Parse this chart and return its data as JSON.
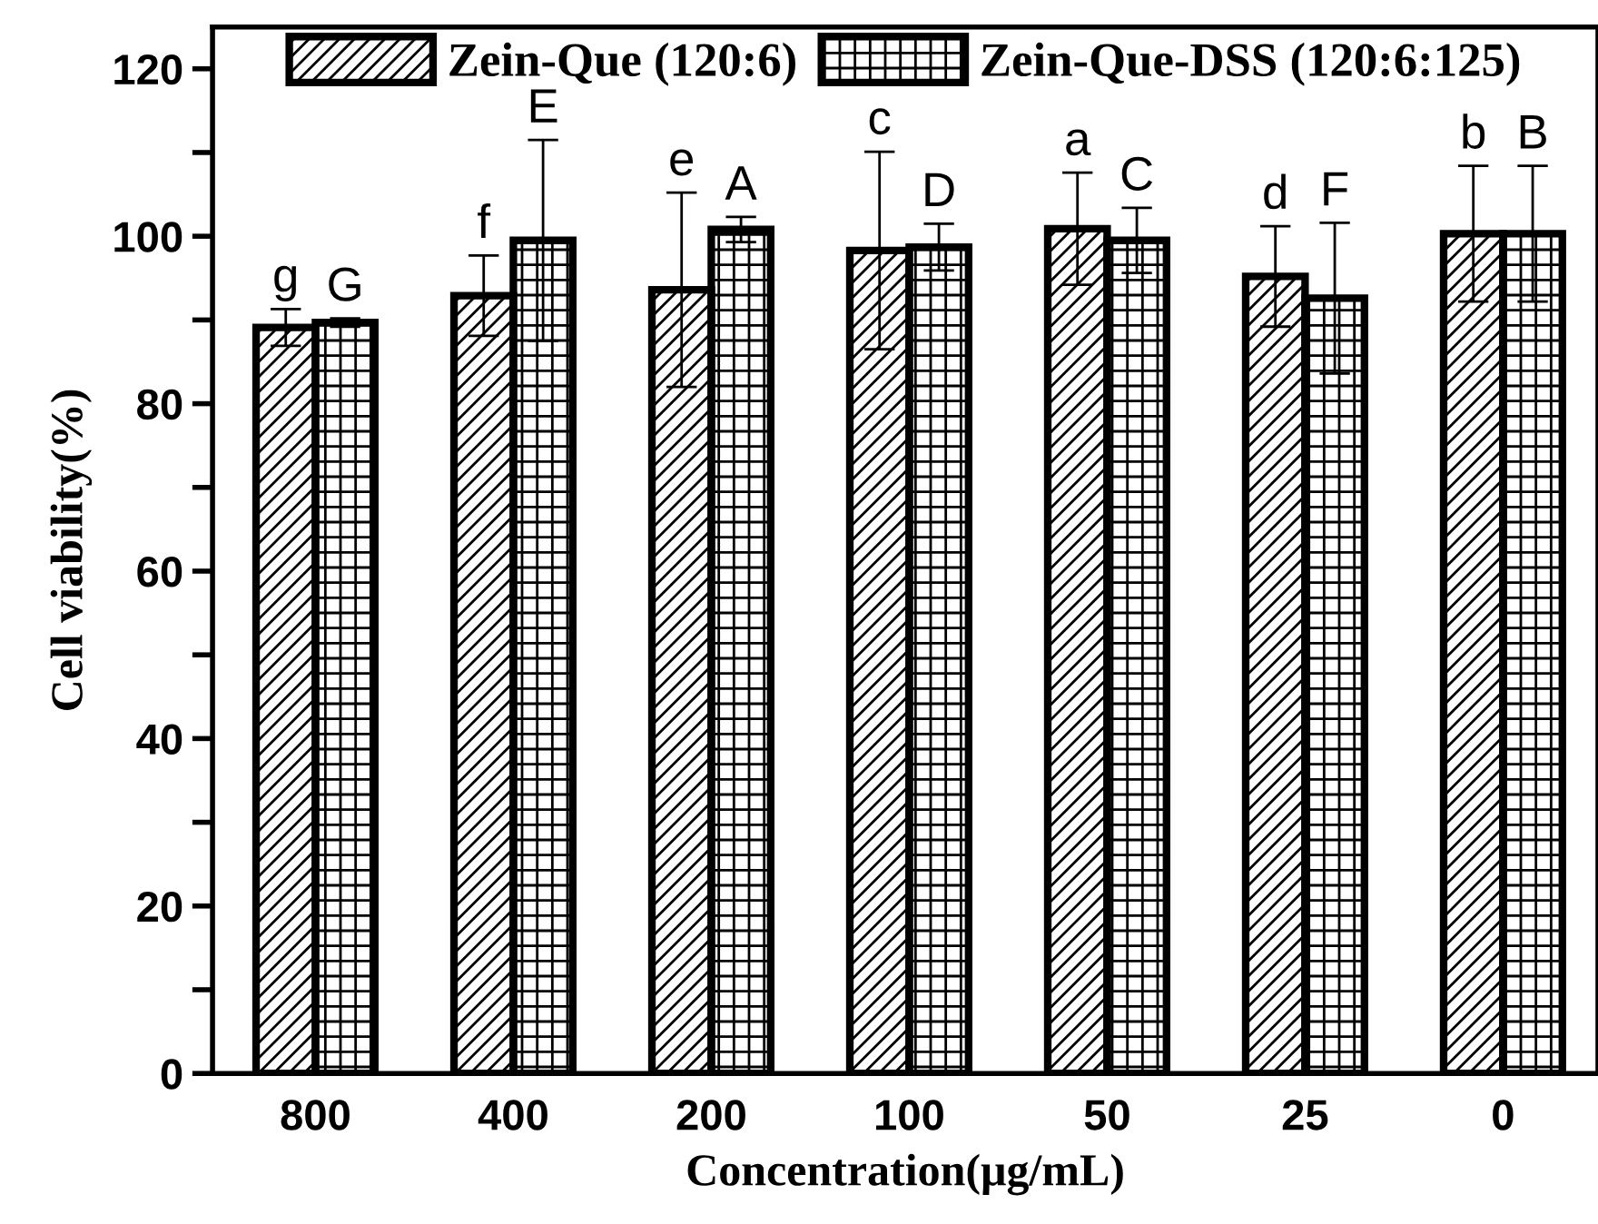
{
  "chart_data": {
    "type": "bar",
    "xlabel": "Concentration(μg/mL)",
    "ylabel": "Cell viability(%)",
    "categories": [
      "800",
      "400",
      "200",
      "100",
      "50",
      "25",
      "0"
    ],
    "series": [
      {
        "name": "Zein-Que (120:6)",
        "color": "#000000",
        "values": [
          89.1,
          92.9,
          93.6,
          98.3,
          100.9,
          95.2,
          100.3
        ],
        "errors": [
          2.2,
          4.8,
          11.6,
          11.8,
          6.7,
          6.0,
          8.1
        ],
        "value_labels": [
          "g",
          "f",
          "e",
          "c",
          "a",
          "d",
          "b"
        ]
      },
      {
        "name": "Zein-Que-DSS (120:6:125)",
        "color": "#000000",
        "values": [
          89.7,
          99.5,
          100.8,
          98.7,
          99.5,
          92.6,
          100.3
        ],
        "errors": [
          0.5,
          12.0,
          1.5,
          2.8,
          3.9,
          9.0,
          8.1
        ],
        "value_labels": [
          "G",
          "E",
          "A",
          "D",
          "C",
          "F",
          "B"
        ]
      }
    ],
    "ylim": [
      0,
      125
    ],
    "yticks": [
      0,
      {
        "value": 10,
        "label": null
      },
      20,
      {
        "value": 30,
        "label": null
      },
      40,
      {
        "value": 50,
        "label": null
      },
      60,
      {
        "value": 70,
        "label": null
      },
      80,
      {
        "value": 90,
        "label": null
      },
      100,
      {
        "value": 110,
        "label": null
      },
      120
    ],
    "grid": false,
    "legend": "top"
  }
}
